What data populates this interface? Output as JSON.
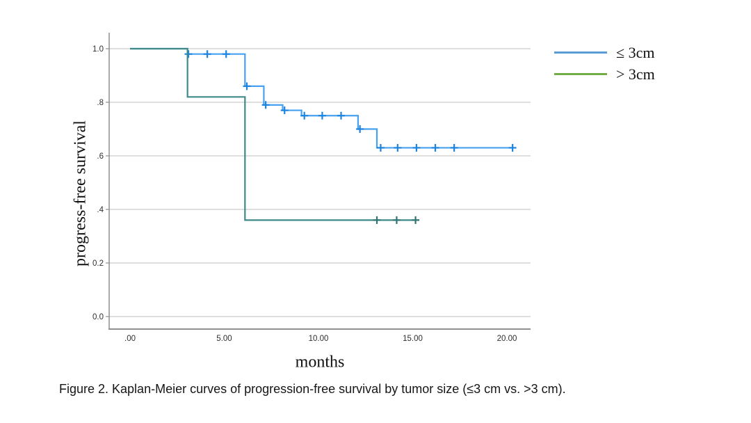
{
  "figure": {
    "caption": "Figure 2. Kaplan-Meier curves of progression-free survival by tumor size (≤3 cm vs. >3 cm)."
  },
  "chart_data": {
    "type": "line",
    "subtype": "kaplan_meier_step",
    "title": "",
    "xlabel": "months",
    "ylabel": "progress-free survival",
    "xlim": [
      0,
      21.3
    ],
    "ylim": [
      0,
      1.0
    ],
    "grid": true,
    "legend_position": "outside-top-right",
    "x_ticks": [
      {
        "value": 0,
        "label": ".00"
      },
      {
        "value": 5,
        "label": "5.00"
      },
      {
        "value": 10,
        "label": "10.00"
      },
      {
        "value": 15,
        "label": "15.00"
      },
      {
        "value": 20,
        "label": "20.00"
      }
    ],
    "y_ticks": [
      {
        "value": 0.0,
        "label": "0.0"
      },
      {
        "value": 0.2,
        "label": "0.2"
      },
      {
        "value": 0.4,
        "label": ".4"
      },
      {
        "value": 0.6,
        "label": ".6"
      },
      {
        "value": 0.8,
        "label": ".8"
      },
      {
        "value": 1.0,
        "label": "1.0"
      }
    ],
    "series": [
      {
        "name": "≤ 3cm",
        "curve_color": "#47A1F1",
        "censor_color": "#1D84E0",
        "legend_color": "#5B9BD5",
        "steps": [
          [
            0,
            1.0
          ],
          [
            3.05,
            0.98
          ],
          [
            6.1,
            0.86
          ],
          [
            7.1,
            0.79
          ],
          [
            8.1,
            0.77
          ],
          [
            9.1,
            0.75
          ],
          [
            12.1,
            0.7
          ],
          [
            13.1,
            0.63
          ]
        ],
        "end_time": 20.3,
        "censors": [
          [
            3.1,
            0.98
          ],
          [
            4.1,
            0.98
          ],
          [
            5.1,
            0.98
          ],
          [
            6.2,
            0.86
          ],
          [
            7.2,
            0.79
          ],
          [
            8.2,
            0.77
          ],
          [
            9.25,
            0.75
          ],
          [
            10.2,
            0.75
          ],
          [
            11.2,
            0.75
          ],
          [
            12.2,
            0.7
          ],
          [
            13.3,
            0.63
          ],
          [
            14.2,
            0.63
          ],
          [
            15.2,
            0.63
          ],
          [
            16.2,
            0.63
          ],
          [
            17.2,
            0.63
          ],
          [
            20.3,
            0.63
          ]
        ]
      },
      {
        "name": "> 3cm",
        "curve_color": "#3E8A88",
        "censor_color": "#2F7573",
        "legend_color": "#70AD47",
        "steps": [
          [
            0,
            1.0
          ],
          [
            3.05,
            0.82
          ],
          [
            6.1,
            0.36
          ]
        ],
        "end_time": 15.35,
        "censors": [
          [
            13.1,
            0.36
          ],
          [
            14.15,
            0.36
          ],
          [
            15.15,
            0.36
          ]
        ]
      }
    ],
    "colors": {
      "gridline": "#CBCBCB",
      "axis": "#8F8F8F",
      "tick_label": "#2E2E2E",
      "background": "#FFFFFF"
    }
  }
}
